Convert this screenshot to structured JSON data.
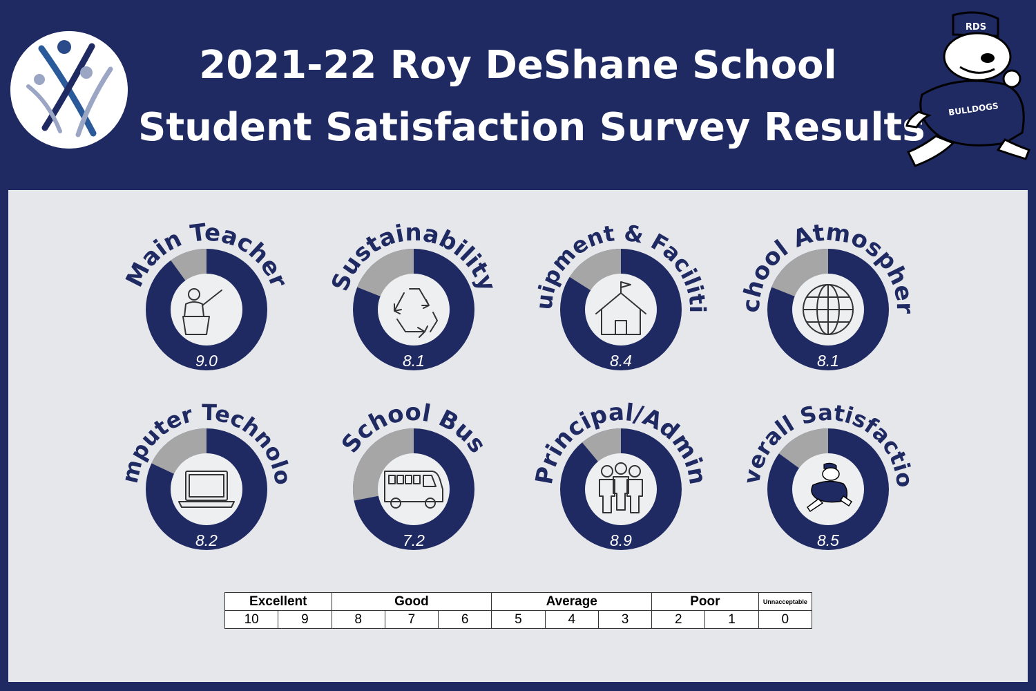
{
  "header": {
    "title_line1": "2021-22 Roy DeShane School",
    "title_line2": "Student Satisfaction Survey Results",
    "mascot_badge": "RDS",
    "mascot_shirt": "BULLDOGS"
  },
  "colors": {
    "navy": "#1f2a63",
    "gray": "#a6a6a6",
    "panel": "#e6e7ea",
    "inner": "#eeeff1"
  },
  "chart_data": {
    "type": "donut",
    "max": 10,
    "items": [
      {
        "label": "Main Teacher",
        "value": 9.0,
        "display": "9.0",
        "icon": "teacher-icon"
      },
      {
        "label": "Sustainability",
        "value": 8.1,
        "display": "8.1",
        "icon": "recycle-icon"
      },
      {
        "label": "Equipment & Facilities",
        "value": 8.4,
        "display": "8.4",
        "icon": "schoolhouse-icon"
      },
      {
        "label": "School Atmosphere",
        "value": 8.1,
        "display": "8.1",
        "icon": "globe-icon"
      },
      {
        "label": "Computer Technology",
        "value": 8.2,
        "display": "8.2",
        "icon": "laptop-icon"
      },
      {
        "label": "School Bus",
        "value": 7.2,
        "display": "7.2",
        "icon": "bus-icon"
      },
      {
        "label": "Principal/Admin",
        "value": 8.9,
        "display": "8.9",
        "icon": "people-icon"
      },
      {
        "label": "Overall Satisfaction",
        "value": 8.5,
        "display": "8.5",
        "icon": "bulldog-icon"
      }
    ]
  },
  "scale": {
    "categories": [
      {
        "label": "Excellent",
        "span": 2
      },
      {
        "label": "Good",
        "span": 3
      },
      {
        "label": "Average",
        "span": 3
      },
      {
        "label": "Poor",
        "span": 2
      },
      {
        "label": "Unnacceptable",
        "span": 1
      }
    ],
    "numbers": [
      "10",
      "9",
      "8",
      "7",
      "6",
      "5",
      "4",
      "3",
      "2",
      "1",
      "0"
    ]
  }
}
